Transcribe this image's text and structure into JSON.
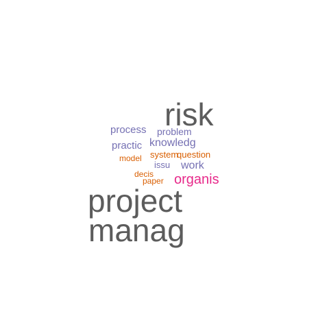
{
  "wordcloud": {
    "words": [
      {
        "id": "risk",
        "text": "risk",
        "color": "#5c5c5c"
      },
      {
        "id": "process",
        "text": "process",
        "color": "#7570b3"
      },
      {
        "id": "problem",
        "text": "problem",
        "color": "#7570b3"
      },
      {
        "id": "practic",
        "text": "practic",
        "color": "#7570b3"
      },
      {
        "id": "knowledg",
        "text": "knowledg",
        "color": "#7570b3"
      },
      {
        "id": "model",
        "text": "model",
        "color": "#d95f02"
      },
      {
        "id": "system",
        "text": "system",
        "color": "#d95f02"
      },
      {
        "id": "question",
        "text": "question",
        "color": "#d95f02"
      },
      {
        "id": "issu",
        "text": "issu",
        "color": "#7570b3"
      },
      {
        "id": "work",
        "text": "work",
        "color": "#7570b3"
      },
      {
        "id": "decis",
        "text": "decis",
        "color": "#d95f02"
      },
      {
        "id": "paper",
        "text": "paper",
        "color": "#d95f02"
      },
      {
        "id": "organis",
        "text": "organis",
        "color": "#e7298a"
      },
      {
        "id": "project",
        "text": "project",
        "color": "#5c5c5c"
      },
      {
        "id": "manag",
        "text": "manag",
        "color": "#5c5c5c"
      }
    ]
  }
}
